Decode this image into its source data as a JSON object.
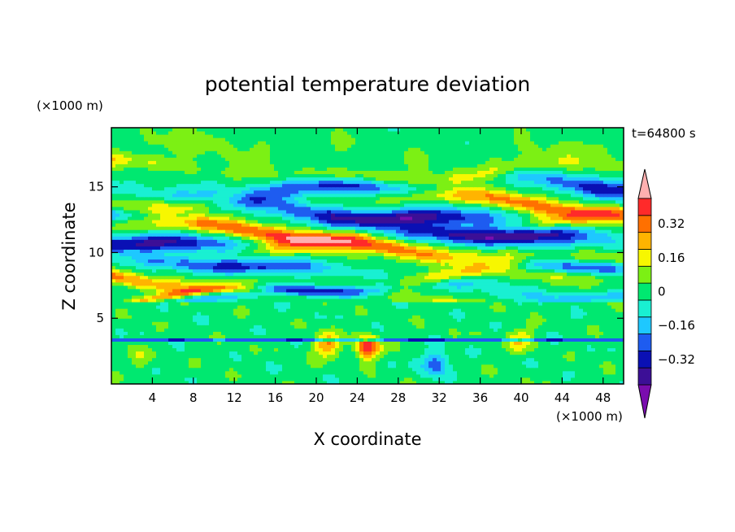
{
  "chart_data": {
    "type": "heatmap",
    "title": "potential temperature deviation",
    "xlabel": "X coordinate",
    "ylabel": "Z coordinate",
    "x_unit": "(×1000 m)",
    "z_unit": "(×1000 m)",
    "time_label": "t=64800 s",
    "xlim": [
      0,
      50
    ],
    "ylim": [
      0,
      19.5
    ],
    "x_ticks": [
      4,
      8,
      12,
      16,
      20,
      24,
      28,
      32,
      36,
      40,
      44,
      48
    ],
    "y_ticks": [
      5,
      10,
      15
    ],
    "colorbar": {
      "levels": [
        -0.48,
        -0.4,
        -0.32,
        -0.24,
        -0.16,
        -0.08,
        0,
        0.08,
        0.16,
        0.24,
        0.32,
        0.4,
        0.48
      ],
      "labels": [
        "0.32",
        "0.16",
        "0",
        "−0.16",
        "−0.32"
      ],
      "label_values": [
        0.32,
        0.16,
        0,
        -0.16,
        -0.32
      ],
      "colors": [
        "#7a0dae",
        "#3c0f96",
        "#0a10b4",
        "#1e5cf0",
        "#1ec8ff",
        "#19f0d2",
        "#00e870",
        "#7cf014",
        "#f7f700",
        "#ffb400",
        "#ff7000",
        "#ff2a2a",
        "#ffb0b0"
      ]
    },
    "bands": [
      {
        "z": 17.8,
        "amp": 0.05,
        "thick": 1.2
      },
      {
        "z": 16.2,
        "amp": 0.2,
        "thick": 0.55
      },
      {
        "z": 15.0,
        "amp": -0.38,
        "thick": 0.7
      },
      {
        "z": 14.0,
        "amp": 0.3,
        "thick": 0.6
      },
      {
        "z": 13.0,
        "amp": -0.42,
        "thick": 0.7
      },
      {
        "z": 12.0,
        "amp": 0.35,
        "thick": 0.6
      },
      {
        "z": 11.0,
        "amp": -0.44,
        "thick": 0.7
      },
      {
        "z": 10.0,
        "amp": 0.4,
        "thick": 0.65
      },
      {
        "z": 8.8,
        "amp": -0.3,
        "thick": 0.6
      },
      {
        "z": 7.9,
        "amp": 0.34,
        "thick": 0.55
      },
      {
        "z": 6.9,
        "amp": -0.4,
        "thick": 0.5
      },
      {
        "z": 6.4,
        "amp": 0.28,
        "thick": 0.35
      }
    ]
  }
}
